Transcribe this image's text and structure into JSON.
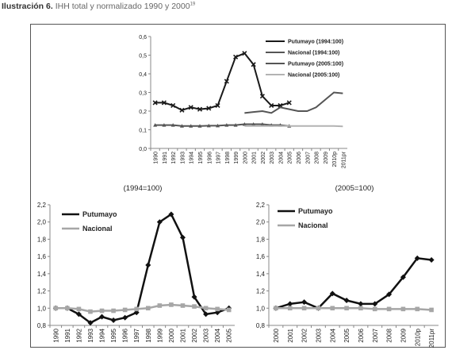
{
  "caption": {
    "label": "Ilustración 6.",
    "text": "IHH total y normalizado 1990 y 2000",
    "note": "19"
  },
  "chart_data": [
    {
      "type": "line",
      "legend": "upper right",
      "categories": [
        "1990",
        "1991",
        "1992",
        "1993",
        "1994",
        "1995",
        "1996",
        "1997",
        "1998",
        "1999",
        "2000",
        "2001",
        "2002",
        "2003",
        "2004",
        "2005",
        "2006",
        "2007",
        "2008",
        "2009",
        "2010p",
        "2011pr"
      ],
      "ylim": [
        0,
        0.6
      ],
      "yticks": [
        {
          "value": 0,
          "label": "0,0"
        },
        {
          "value": 0.1,
          "label": "0,1"
        },
        {
          "value": 0.2,
          "label": "0,2"
        },
        {
          "value": 0.3,
          "label": "0,3"
        },
        {
          "value": 0.4,
          "label": "0,4"
        },
        {
          "value": 0.5,
          "label": "0,5"
        },
        {
          "value": 0.6,
          "label": "0,6"
        }
      ],
      "series": [
        {
          "name": "Putumayo (1994:100)",
          "color": "#1a1a1a",
          "marker": "x",
          "values": [
            0.245,
            0.245,
            0.23,
            0.205,
            0.22,
            0.21,
            0.215,
            0.23,
            0.36,
            0.49,
            0.51,
            0.45,
            0.28,
            0.23,
            0.23,
            0.245,
            null,
            null,
            null,
            null,
            null,
            null
          ]
        },
        {
          "name": "Nacional (1994:100)",
          "color": "#555555",
          "marker": "triangle",
          "values": [
            0.125,
            0.125,
            0.125,
            0.12,
            0.12,
            0.12,
            0.122,
            0.122,
            0.125,
            0.125,
            0.13,
            0.13,
            0.13,
            0.125,
            0.125,
            0.12,
            null,
            null,
            null,
            null,
            null,
            null
          ]
        },
        {
          "name": "Putumayo (2005:100)",
          "color": "#555555",
          "marker": "none",
          "values": [
            null,
            null,
            null,
            null,
            null,
            null,
            null,
            null,
            null,
            null,
            0.19,
            0.195,
            0.2,
            0.19,
            0.22,
            0.21,
            0.2,
            0.2,
            0.22,
            0.26,
            0.3,
            0.295
          ]
        },
        {
          "name": "Nacional (2005:100)",
          "color": "#b3b3b3",
          "marker": "none",
          "values": [
            null,
            null,
            null,
            null,
            null,
            null,
            null,
            null,
            null,
            null,
            0.12,
            0.12,
            0.12,
            0.12,
            0.12,
            0.12,
            0.12,
            0.12,
            0.12,
            0.12,
            0.12,
            0.118
          ]
        }
      ]
    },
    {
      "type": "line",
      "title": "(1994=100)",
      "legend": "upper left",
      "categories": [
        "1990",
        "1991",
        "1992",
        "1993",
        "1994",
        "1995",
        "1996",
        "1997",
        "1998",
        "1999",
        "2000",
        "2001",
        "2002",
        "2003",
        "2004",
        "2005"
      ],
      "ylim": [
        0.8,
        2.2
      ],
      "yticks": [
        {
          "value": 0.8,
          "label": "0,8"
        },
        {
          "value": 1.0,
          "label": "1,0"
        },
        {
          "value": 1.2,
          "label": "1,2"
        },
        {
          "value": 1.4,
          "label": "1,4"
        },
        {
          "value": 1.6,
          "label": "1,6"
        },
        {
          "value": 1.8,
          "label": "1,8"
        },
        {
          "value": 2.0,
          "label": "2,0"
        },
        {
          "value": 2.2,
          "label": "2,2"
        }
      ],
      "series": [
        {
          "name": "Putumayo",
          "color": "#111111",
          "marker": "diamond",
          "values": [
            1.0,
            1.0,
            0.93,
            0.83,
            0.9,
            0.86,
            0.89,
            0.95,
            1.5,
            2.0,
            2.09,
            1.82,
            1.13,
            0.93,
            0.95,
            1.0
          ]
        },
        {
          "name": "Nacional",
          "color": "#a6a6a6",
          "marker": "square",
          "values": [
            1.0,
            1.0,
            0.99,
            0.96,
            0.97,
            0.97,
            0.98,
            0.99,
            1.0,
            1.03,
            1.04,
            1.03,
            1.02,
            1.0,
            0.99,
            0.98
          ]
        }
      ]
    },
    {
      "type": "line",
      "title": "(2005=100)",
      "legend": "upper left",
      "categories": [
        "2000",
        "2001",
        "2002",
        "2003",
        "2004",
        "2005",
        "2006",
        "2007",
        "2008",
        "2009",
        "2010p",
        "2011pr"
      ],
      "ylim": [
        0.8,
        2.2
      ],
      "yticks": [
        {
          "value": 0.8,
          "label": "0,8"
        },
        {
          "value": 1.0,
          "label": "1,0"
        },
        {
          "value": 1.2,
          "label": "1,2"
        },
        {
          "value": 1.4,
          "label": "1,4"
        },
        {
          "value": 1.6,
          "label": "1,6"
        },
        {
          "value": 1.8,
          "label": "1,8"
        },
        {
          "value": 2.0,
          "label": "2,0"
        },
        {
          "value": 2.2,
          "label": "2,2"
        }
      ],
      "series": [
        {
          "name": "Putumayo",
          "color": "#111111",
          "marker": "diamond",
          "values": [
            1.0,
            1.05,
            1.07,
            1.0,
            1.17,
            1.09,
            1.05,
            1.05,
            1.16,
            1.36,
            1.58,
            1.56
          ]
        },
        {
          "name": "Nacional",
          "color": "#a6a6a6",
          "marker": "square",
          "values": [
            1.0,
            1.0,
            1.0,
            1.0,
            1.0,
            1.0,
            1.0,
            0.99,
            0.99,
            0.99,
            0.99,
            0.98
          ]
        }
      ]
    }
  ]
}
